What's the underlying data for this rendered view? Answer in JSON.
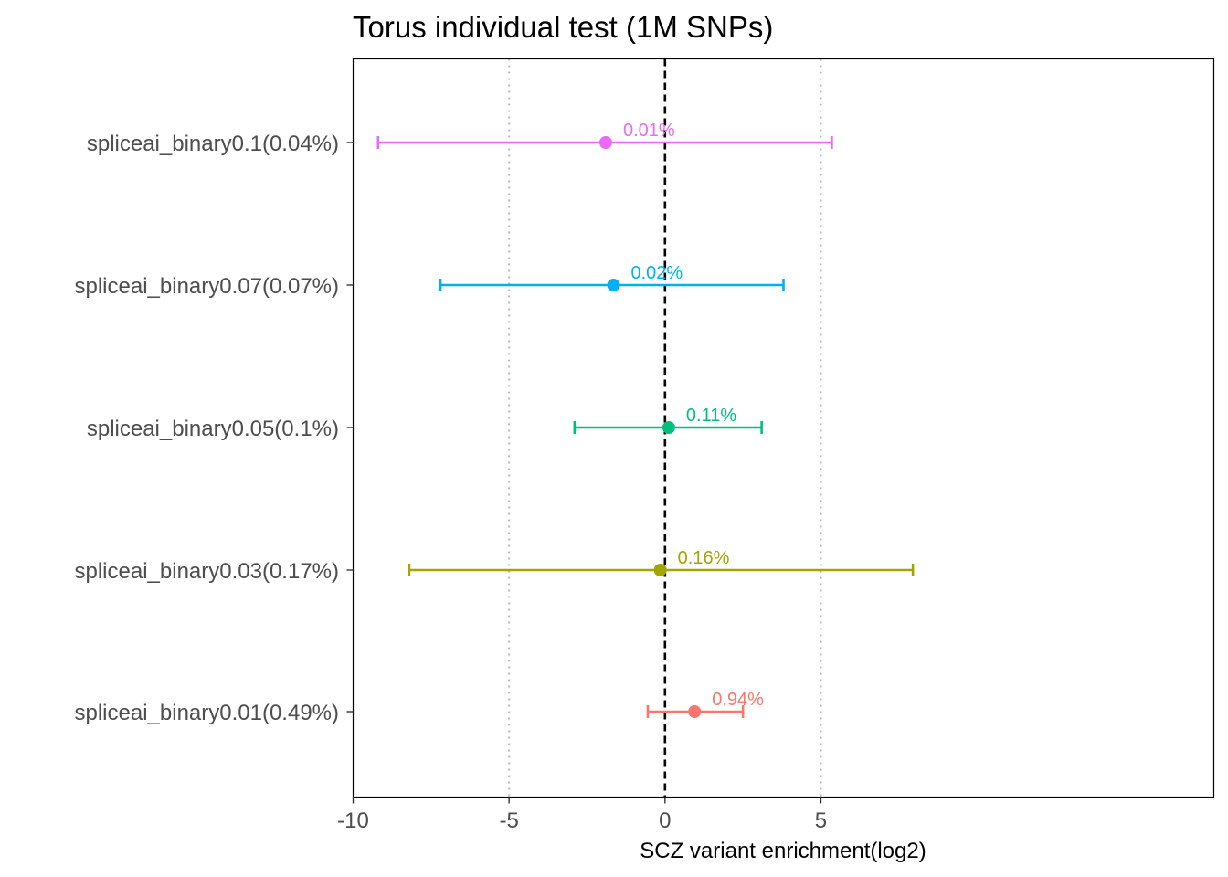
{
  "chart_data": {
    "type": "errorbar",
    "title": "Torus individual test (1M SNPs)",
    "xlabel": "SCZ variant enrichment(log2)",
    "ylabel": "",
    "xlim": [
      -10,
      17.6
    ],
    "xticks": [
      "-10",
      "-5",
      "0",
      "5"
    ],
    "xtick_values": [
      -10,
      -5,
      0,
      5
    ],
    "reference_line": 0,
    "grid": "vertical-dotted",
    "categories": [
      "spliceai_binary0.1(0.04%)",
      "spliceai_binary0.07(0.07%)",
      "spliceai_binary0.05(0.1%)",
      "spliceai_binary0.03(0.17%)",
      "spliceai_binary0.01(0.49%)"
    ],
    "series": [
      {
        "category": "spliceai_binary0.1(0.04%)",
        "estimate": -1.9,
        "low": -9.2,
        "high": 5.35,
        "label": "0.01%",
        "color": "#E76BF3"
      },
      {
        "category": "spliceai_binary0.07(0.07%)",
        "estimate": -1.65,
        "low": -7.2,
        "high": 3.8,
        "label": "0.02%",
        "color": "#00B0F6"
      },
      {
        "category": "spliceai_binary0.05(0.1%)",
        "estimate": 0.12,
        "low": -2.9,
        "high": 3.1,
        "label": "0.11%",
        "color": "#00BF7D"
      },
      {
        "category": "spliceai_binary0.03(0.17%)",
        "estimate": -0.15,
        "low": -8.2,
        "high": 7.95,
        "label": "0.16%",
        "color": "#A3A500"
      },
      {
        "category": "spliceai_binary0.01(0.49%)",
        "estimate": 0.95,
        "low": -0.55,
        "high": 2.5,
        "label": "0.94%",
        "color": "#F8766D"
      }
    ]
  }
}
